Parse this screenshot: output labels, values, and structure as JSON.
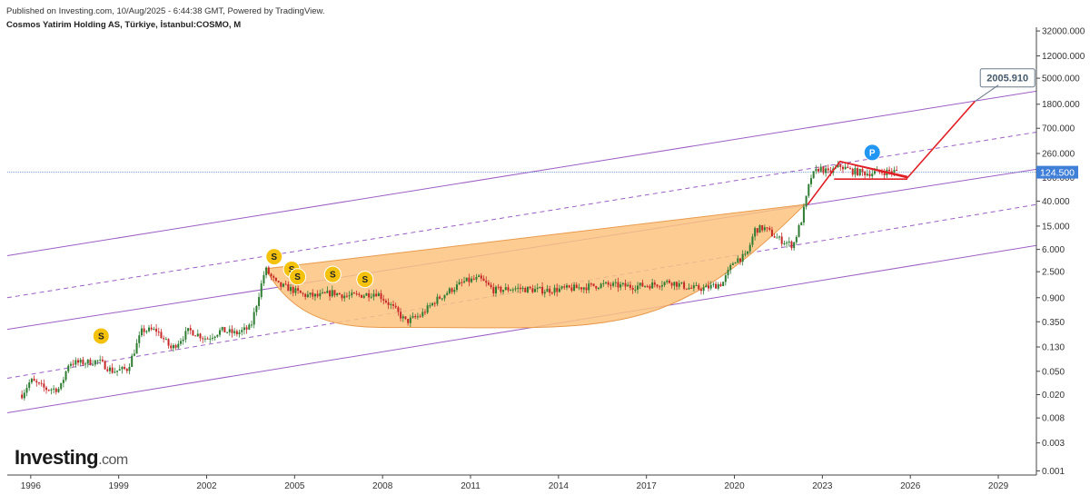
{
  "header": {
    "published": "Published on Investing.com, 10/Aug/2025 - 6:44:38 GMT, Powered by TradingView.",
    "symbol": "Cosmos Yatirim Holding AS, Türkiye, İstanbul:COSMO, M"
  },
  "branding": {
    "logo_main": "Investing",
    "logo_suffix": ".com"
  },
  "chart_data": {
    "type": "line",
    "title": "Cosmos Yatirim Holding AS, Türkiye, İstanbul:COSMO, M",
    "scale": "log",
    "y_ticks": [
      "32000.000",
      "12000.000",
      "5000.000",
      "1800.000",
      "700.000",
      "260.000",
      "100.000",
      "40.000",
      "15.000",
      "6.000",
      "2.500",
      "0.900",
      "0.350",
      "0.130",
      "0.050",
      "0.020",
      "0.008",
      "0.003",
      "0.001"
    ],
    "x_ticks": [
      "1996",
      "1999",
      "2002",
      "2005",
      "2008",
      "2011",
      "2014",
      "2017",
      "2020",
      "2023",
      "2026",
      "2029"
    ],
    "xlim": [
      1995.2,
      2030.3
    ],
    "ylim": [
      0.00085,
      37000
    ],
    "last_price": "124.500",
    "last_price_value": 124.5,
    "target_label": "2005.910",
    "target_value": 2005.91,
    "colors": {
      "up": "#2e7d32",
      "down": "#c62828",
      "channel": "#9c5fc4",
      "cup_fill": "#fbc380",
      "triangle": "#e01f26",
      "price_line": "#5b8ed6",
      "price_badge": "#3f7fd8",
      "dividend_marker": "#f4c20d",
      "pattern_marker": "#2196f3"
    },
    "price_series": {
      "name": "COSMO, M",
      "x": [
        1995.7,
        1996.0,
        1996.5,
        1997.0,
        1997.3,
        1997.8,
        1998.3,
        1998.8,
        1999.3,
        1999.8,
        2000.3,
        2000.8,
        2001.4,
        2002.0,
        2002.5,
        2003.0,
        2003.5,
        2004.0,
        2004.4,
        2004.8,
        2005.3,
        2005.8,
        2006.3,
        2006.8,
        2007.3,
        2007.8,
        2008.3,
        2008.8,
        2009.3,
        2009.8,
        2010.3,
        2010.8,
        2011.3,
        2011.8,
        2012.5,
        2013.5,
        2014.5,
        2015.5,
        2016.5,
        2017.2,
        2017.8,
        2018.5,
        2019.0,
        2019.6,
        2020.0,
        2020.4,
        2020.7,
        2021.0,
        2021.5,
        2022.0,
        2022.3,
        2022.6,
        2022.9,
        2023.2,
        2023.6,
        2024.0,
        2024.5,
        2025.0,
        2025.4,
        2025.6
      ],
      "values": [
        0.02,
        0.035,
        0.025,
        0.025,
        0.07,
        0.07,
        0.075,
        0.05,
        0.055,
        0.25,
        0.25,
        0.12,
        0.25,
        0.18,
        0.25,
        0.22,
        0.28,
        2.8,
        1.5,
        1.3,
        1.0,
        0.95,
        1.1,
        0.95,
        1.0,
        1.1,
        0.65,
        0.35,
        0.45,
        0.8,
        1.2,
        1.7,
        1.9,
        1.2,
        1.3,
        1.2,
        1.3,
        1.5,
        1.4,
        1.5,
        1.7,
        1.3,
        1.3,
        1.6,
        4.0,
        4.5,
        13.0,
        14.0,
        9.0,
        7.0,
        20.0,
        100.0,
        150.0,
        120.0,
        160.0,
        130.0,
        120.0,
        125.0,
        130.0,
        124.5
      ]
    },
    "channel_lines": [
      {
        "style": "solid",
        "x": [
          1995.2,
          2030.3
        ],
        "y": [
          4.7,
          3000.0
        ]
      },
      {
        "style": "dashed",
        "x": [
          1995.2,
          2030.3
        ],
        "y": [
          0.9,
          600.0
        ]
      },
      {
        "style": "solid",
        "x": [
          1995.2,
          2030.3
        ],
        "y": [
          0.26,
          140.0
        ]
      },
      {
        "style": "dashed",
        "x": [
          1995.2,
          2030.3
        ],
        "y": [
          0.038,
          35.0
        ]
      },
      {
        "style": "solid",
        "x": [
          1995.2,
          2030.3
        ],
        "y": [
          0.0098,
          7.0
        ]
      }
    ],
    "cup_pattern": {
      "left": [
        2004.0,
        2.8
      ],
      "bottom": [
        2009.0,
        0.28
      ],
      "right": [
        2022.4,
        35.0
      ]
    },
    "triangle_pattern": {
      "upper": [
        [
          2023.6,
          190.0
        ],
        [
          2025.9,
          105.0
        ]
      ],
      "lower": [
        [
          2023.4,
          95.0
        ],
        [
          2025.9,
          95.0
        ]
      ]
    },
    "projection": {
      "x": [
        2022.5,
        2023.6,
        2025.9,
        2028.2
      ],
      "y": [
        35.0,
        190.0,
        100.0,
        2005.91
      ]
    },
    "annotations": [
      {
        "marker": "S",
        "x": 1998.4,
        "y": 0.2
      },
      {
        "marker": "S",
        "x": 2004.3,
        "y": 4.5
      },
      {
        "marker": "S",
        "x": 2004.9,
        "y": 2.75
      },
      {
        "marker": "S",
        "x": 2005.1,
        "y": 2.05
      },
      {
        "marker": "S",
        "x": 2006.3,
        "y": 2.25
      },
      {
        "marker": "S",
        "x": 2007.4,
        "y": 1.85
      },
      {
        "marker": "P",
        "x": 2024.7,
        "y": 270.0
      }
    ]
  }
}
